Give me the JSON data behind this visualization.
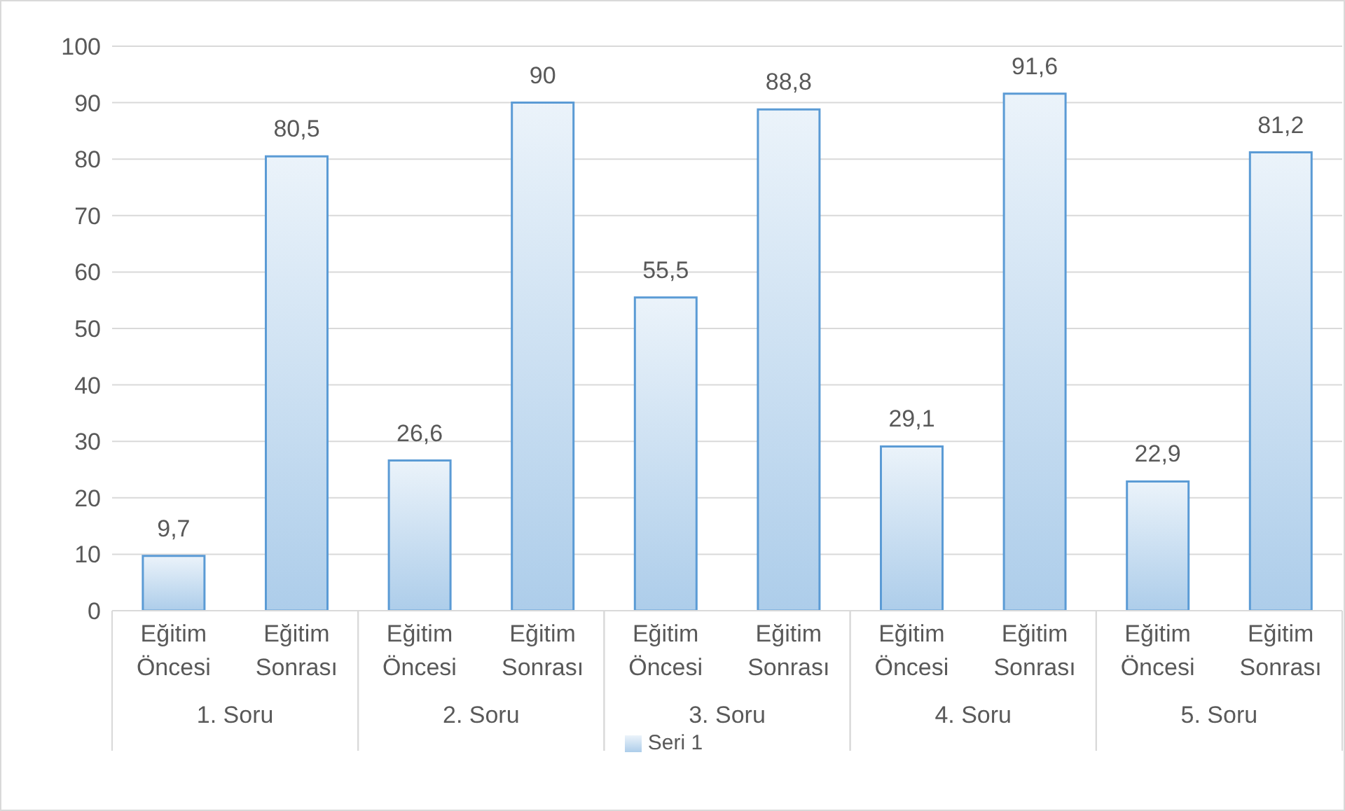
{
  "chart_data": {
    "type": "bar",
    "categories": [
      "Eğitim Öncesi",
      "Eğitim Sonrası",
      "Eğitim Öncesi",
      "Eğitim Sonrası",
      "Eğitim Öncesi",
      "Eğitim Sonrası",
      "Eğitim Öncesi",
      "Eğitim Sonrası",
      "Eğitim Öncesi",
      "Eğitim Sonrası"
    ],
    "series": [
      {
        "name": "Seri 1",
        "color": "#5b9bd5",
        "values": [
          9.7,
          80.5,
          26.6,
          90,
          55.5,
          88.8,
          29.1,
          91.6,
          22.9,
          81.2
        ],
        "value_labels": [
          "9,7",
          "80,5",
          "26,6",
          "90",
          "55,5",
          "88,8",
          "29,1",
          "91,6",
          "22,9",
          "81,2"
        ]
      }
    ],
    "annotations": [
      "1. Soru",
      "2. Soru",
      "3. Soru",
      "4. Soru",
      "5. Soru"
    ],
    "ylim": [
      0,
      100
    ],
    "yticks": [
      0,
      10,
      20,
      30,
      40,
      50,
      60,
      70,
      80,
      90,
      100
    ],
    "grid": "y",
    "legend": "bottom"
  }
}
